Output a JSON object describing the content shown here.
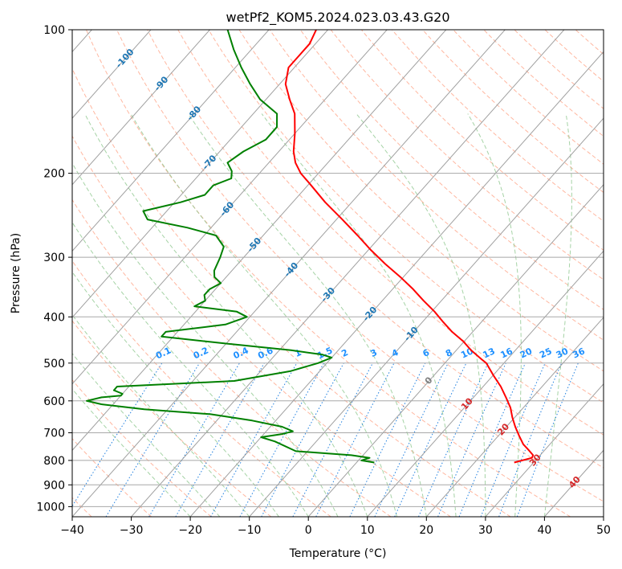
{
  "chart_data": {
    "type": "skew-t",
    "title": "wetPf2_KOM5.2024.023.03.43.G20",
    "xlabel": "Temperature (°C)",
    "ylabel": "Pressure (hPa)",
    "xlim": [
      -40,
      50
    ],
    "ylim": [
      1050,
      100
    ],
    "y_scale": "log",
    "grid": true,
    "x_ticks": [
      -40,
      -30,
      -20,
      -10,
      0,
      10,
      20,
      30,
      40,
      50
    ],
    "y_ticks": [
      100,
      200,
      300,
      400,
      500,
      600,
      700,
      800,
      900,
      1000
    ],
    "colors": {
      "temperature": "#ff0000",
      "dewpoint": "#008000",
      "isotherm": "#a0a0a0",
      "dry_adiabat": "#ff9f80",
      "moist_adiabat": "#90c890",
      "mixing_ratio": "#1f7fdf",
      "label_blue": "#1f77b4",
      "label_mixing": "#1e90ff",
      "label_red": "#d62728",
      "label_gray": "#808080"
    },
    "temperature_profile": {
      "name": "Temperature",
      "pressure_hPa": [
        808,
        790,
        780,
        760,
        740,
        710,
        680,
        650,
        620,
        590,
        560,
        530,
        500,
        490,
        470,
        450,
        430,
        410,
        390,
        370,
        350,
        330,
        310,
        290,
        270,
        250,
        230,
        210,
        200,
        190,
        180,
        165,
        150,
        140,
        130,
        120,
        113,
        107,
        100
      ],
      "temperature_C": [
        26.7,
        29.0,
        28.8,
        27.2,
        25.5,
        23.5,
        21.5,
        19.6,
        17.8,
        15.5,
        13.0,
        10.0,
        7.0,
        5.5,
        2.5,
        -0.2,
        -3.5,
        -6.5,
        -9.5,
        -13.0,
        -16.5,
        -20.5,
        -25.0,
        -29.5,
        -34.0,
        -39.0,
        -44.5,
        -50.0,
        -53.0,
        -55.5,
        -57.5,
        -60.0,
        -63.0,
        -66.0,
        -69.0,
        -71.0,
        -71.0,
        -71.0,
        -72.0
      ]
    },
    "dewpoint_profile": {
      "name": "Dewpoint",
      "pressure_hPa": [
        808,
        800,
        790,
        780,
        765,
        730,
        715,
        705,
        695,
        680,
        660,
        640,
        625,
        610,
        600,
        590,
        585,
        580,
        570,
        560,
        545,
        520,
        500,
        487,
        480,
        470,
        455,
        440,
        430,
        415,
        400,
        390,
        380,
        370,
        360,
        350,
        340,
        330,
        320,
        300,
        285,
        270,
        260,
        250,
        240,
        230,
        222,
        212,
        205,
        198,
        190,
        180,
        170,
        160,
        150,
        140,
        130,
        120,
        110,
        100
      ],
      "temperature_C": [
        3.0,
        0.5,
        1.5,
        -2.0,
        -12.0,
        -17.0,
        -20.0,
        -17.0,
        -15.5,
        -18.0,
        -24.0,
        -32.0,
        -44.0,
        -52.0,
        -55.0,
        -53.0,
        -50.0,
        -50.0,
        -52.0,
        -52.0,
        -33.0,
        -25.0,
        -21.5,
        -20.0,
        -22.0,
        -28.0,
        -40.0,
        -52.0,
        -52.0,
        -43.0,
        -40.5,
        -43.0,
        -51.0,
        -50.0,
        -51.0,
        -51.0,
        -50.0,
        -52.0,
        -53.0,
        -54.0,
        -55.0,
        -58.0,
        -64.0,
        -72.0,
        -74.0,
        -69.0,
        -66.0,
        -66.0,
        -64.0,
        -65.0,
        -67.0,
        -66.0,
        -64.0,
        -64.0,
        -66.0,
        -71.0,
        -75.0,
        -79.0,
        -83.0,
        -87.0
      ]
    },
    "isotherm_labels": [
      "-100",
      "-90",
      "-80",
      "-70",
      "-60",
      "-50",
      "-40",
      "-30",
      "-20",
      "-10",
      "0",
      "10",
      "20",
      "30",
      "40"
    ],
    "mixing_ratio_labels": [
      "0.1",
      "0.2",
      "0.4",
      "0.6",
      "1",
      "1.5",
      "2",
      "3",
      "4",
      "6",
      "8",
      "10",
      "13",
      "16",
      "20",
      "25",
      "30",
      "36"
    ]
  }
}
